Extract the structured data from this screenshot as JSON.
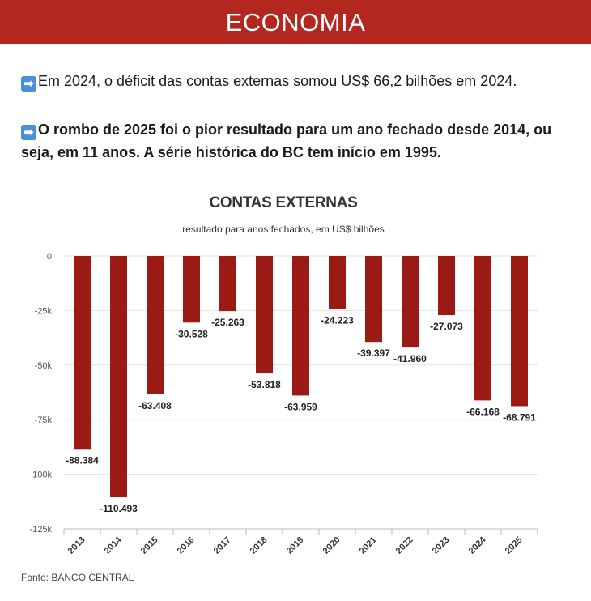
{
  "header": {
    "title": "ECONOMIA"
  },
  "text": {
    "arrow_icon": "arrow-right-icon",
    "arrow_glyph": "➡",
    "paragraph1": "Em 2024, o déficit das contas externas somou US$ 66,2 bilhões em 2024.",
    "paragraph2": "O rombo de 2025 foi o pior resultado para um ano fechado desde 2014, ou seja, em 11 anos. A série histórica do BC tem início em 1995."
  },
  "colors": {
    "header": "#b3271f",
    "bar": "#9b1b14",
    "arrow": "#4a90d9"
  },
  "chart_data": {
    "type": "bar",
    "title": "CONTAS EXTERNAS",
    "subtitle": "resultado para anos fechados, em US$ bilhões",
    "categories": [
      "2013",
      "2014",
      "2015",
      "2016",
      "2017",
      "2018",
      "2019",
      "2020",
      "2021",
      "2022",
      "2023",
      "2024",
      "2025"
    ],
    "values": [
      -88.384,
      -110.493,
      -63.408,
      -30.528,
      -25.263,
      -53.818,
      -63.959,
      -24.223,
      -39.397,
      -41.96,
      -27.073,
      -66.168,
      -68.791
    ],
    "data_labels": [
      "-88.384",
      "-110.493",
      "-63.408",
      "-30.528",
      "-25.263",
      "-53.818",
      "-63.959",
      "-24.223",
      "-39.397",
      "-41.960",
      "-27.073",
      "-66.168",
      "-68.791"
    ],
    "y_ticks": [
      0,
      -25,
      -50,
      -75,
      -100,
      -125
    ],
    "y_tick_labels": [
      "0",
      "-25k",
      "-50k",
      "-75k",
      "-100k",
      "-125k"
    ],
    "ylim": [
      -125,
      0
    ],
    "xlabel": "",
    "ylabel": "",
    "grid": true,
    "source": "Fonte: BANCO CENTRAL"
  }
}
